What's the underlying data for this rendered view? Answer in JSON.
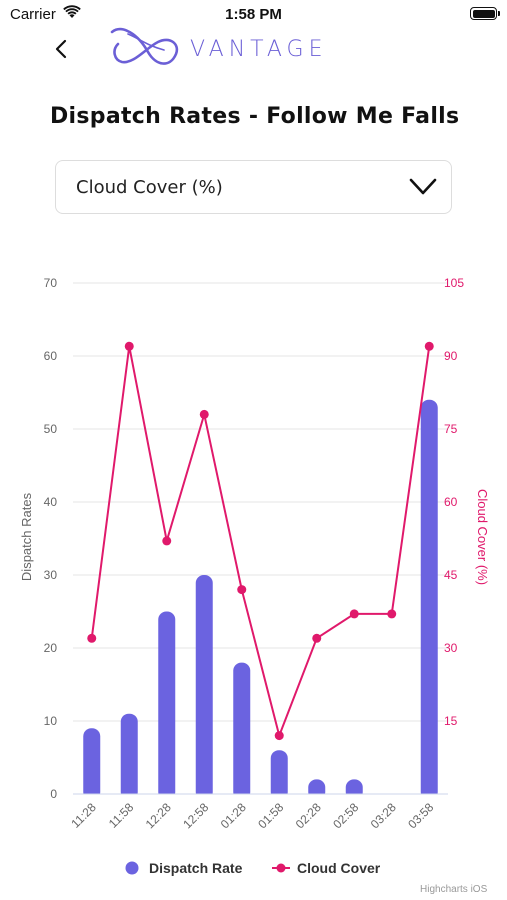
{
  "status_bar": {
    "carrier": "Carrier",
    "time": "1:58 PM"
  },
  "header": {
    "brand": "VANTAGE",
    "back_icon": "chevron-left-icon",
    "logo_icon": "vantage-logo-icon"
  },
  "page": {
    "title": "Dispatch Rates - Follow Me Falls"
  },
  "dropdown": {
    "selected": "Cloud Cover (%)",
    "icon": "chevron-down-icon"
  },
  "credits": "Highcharts iOS",
  "colors": {
    "bar": "#6b63e0",
    "line": "#e0196b",
    "brand": "#6b5fd6",
    "axis_right": "#e0196b",
    "text_muted": "#666666"
  },
  "chart_data": {
    "type": "bar+line",
    "categories": [
      "11:28",
      "11:58",
      "12:28",
      "12:58",
      "01:28",
      "01:58",
      "02:28",
      "02:58",
      "03:28",
      "03:58"
    ],
    "series": [
      {
        "name": "Dispatch Rate",
        "type": "bar",
        "axis": "left",
        "values": [
          9,
          11,
          25,
          30,
          18,
          6,
          2,
          2,
          0,
          54
        ]
      },
      {
        "name": "Cloud Cover",
        "type": "line",
        "axis": "right",
        "values": [
          32,
          92,
          52,
          78,
          42,
          12,
          32,
          37,
          37,
          92
        ]
      }
    ],
    "ylabel": "Dispatch Rates",
    "ylabel_right": "Cloud Cover (%)",
    "ylim": [
      0,
      70
    ],
    "yticks": [
      0,
      10,
      20,
      30,
      40,
      50,
      60,
      70
    ],
    "ylim_right": [
      0,
      105
    ],
    "yticks_right": [
      15,
      30,
      45,
      60,
      75,
      90,
      105
    ],
    "legend_position": "bottom",
    "grid": true
  }
}
